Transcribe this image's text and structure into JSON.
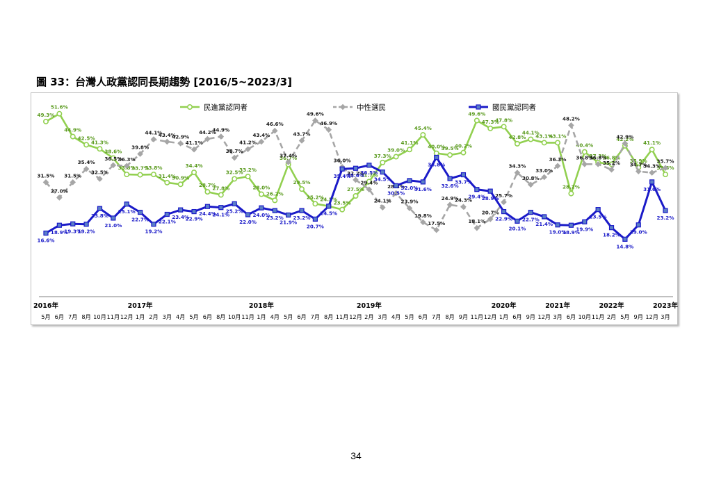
{
  "figure_title": "圖 33：台灣人政黨認同長期趨勢 [2016/5~2023/3]",
  "page_number": "34",
  "chart_data": {
    "type": "line",
    "grid": false,
    "legend_position": "top",
    "ylim": [
      0,
      55
    ],
    "categories": [
      "5月",
      "6月",
      "7月",
      "8月",
      "10月",
      "11月",
      "12月",
      "1月",
      "2月",
      "3月",
      "4月",
      "5月",
      "6月",
      "8月",
      "10月",
      "11月",
      "1月",
      "4月",
      "5月",
      "6月",
      "7月",
      "8月",
      "11月",
      "12月",
      "2月",
      "3月",
      "4月",
      "5月",
      "6月",
      "7月",
      "8月",
      "9月",
      "11月",
      "12月",
      "1月",
      "6月",
      "9月",
      "12月",
      "3月",
      "6月",
      "10月",
      "11月",
      "2月",
      "5月",
      "9月",
      "12月",
      "3月"
    ],
    "year_labels": [
      {
        "label": "2016年",
        "index": 0
      },
      {
        "label": "2017年",
        "index": 7
      },
      {
        "label": "2018年",
        "index": 16
      },
      {
        "label": "2019年",
        "index": 24
      },
      {
        "label": "2020年",
        "index": 34
      },
      {
        "label": "2021年",
        "index": 38
      },
      {
        "label": "2022年",
        "index": 42
      },
      {
        "label": "2023年",
        "index": 46
      }
    ],
    "series": [
      {
        "name": "民進黨認同者",
        "color": "#92d050",
        "label_color": "#5a9a1e",
        "marker": "circle",
        "dash": "",
        "values": [
          49.3,
          51.6,
          44.9,
          42.5,
          41.3,
          38.6,
          33.8,
          33.7,
          33.8,
          31.4,
          30.9,
          34.4,
          28.7,
          27.8,
          32.5,
          33.2,
          28.0,
          26.2,
          36.7,
          29.5,
          25.2,
          24.5,
          23.5,
          27.5,
          31.7,
          37.3,
          39.0,
          41.1,
          45.4,
          40.0,
          39.5,
          40.2,
          49.6,
          47.3,
          47.8,
          42.8,
          44.1,
          43.1,
          43.1,
          28.2,
          40.4,
          37.3,
          36.8,
          42.2,
          35.9,
          41.1,
          33.8
        ]
      },
      {
        "name": "中性選民",
        "color": "#a6a6a6",
        "label_color": "#1a1a1a",
        "marker": "diamond",
        "dash": "8 5",
        "values": [
          31.5,
          27.0,
          31.5,
          35.4,
          32.5,
          36.5,
          36.3,
          39.8,
          44.1,
          43.4,
          42.9,
          41.1,
          44.2,
          44.9,
          38.7,
          41.2,
          43.4,
          46.6,
          37.4,
          43.7,
          49.6,
          46.9,
          36.0,
          32.2,
          29.4,
          24.1,
          28.3,
          23.9,
          19.8,
          17.5,
          24.9,
          24.3,
          18.1,
          20.7,
          25.7,
          34.3,
          30.8,
          33.0,
          36.3,
          48.2,
          36.8,
          36.8,
          35.2,
          42.9,
          34.7,
          34.3,
          35.7
        ]
      },
      {
        "name": "國民黨認同者",
        "color": "#1a1ac8",
        "label_color": "#1a1ac8",
        "marker": "square",
        "dash": "",
        "values": [
          16.6,
          18.9,
          19.3,
          19.2,
          23.8,
          21.0,
          25.1,
          22.7,
          19.2,
          22.1,
          23.4,
          22.9,
          24.4,
          24.1,
          25.2,
          22.0,
          24.0,
          23.2,
          21.9,
          23.2,
          20.7,
          24.5,
          35.4,
          35.6,
          36.5,
          34.5,
          30.5,
          32.0,
          31.6,
          38.8,
          32.6,
          33.7,
          29.4,
          28.9,
          22.9,
          20.1,
          22.7,
          21.4,
          19.0,
          18.9,
          19.9,
          23.5,
          18.2,
          14.8,
          19.0,
          31.6,
          23.2
        ]
      }
    ]
  }
}
